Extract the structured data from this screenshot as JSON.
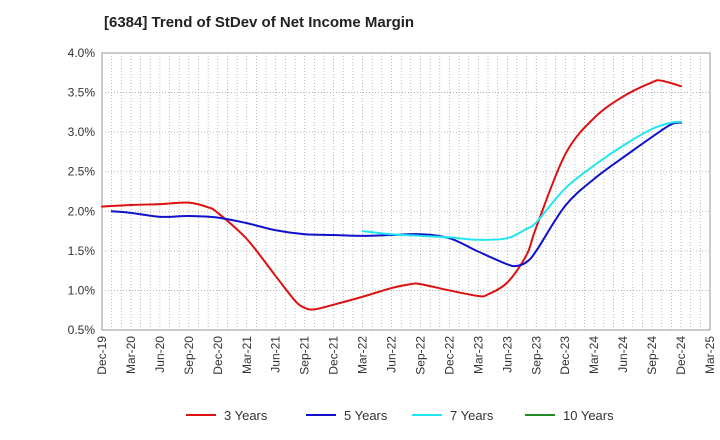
{
  "chart_data": {
    "type": "line",
    "title": "[6384]  Trend of StDev of Net Income Margin",
    "xlabel": "",
    "ylabel": "",
    "x_ticks": [
      "Dec-19",
      "Mar-20",
      "Jun-20",
      "Sep-20",
      "Dec-20",
      "Mar-21",
      "Jun-21",
      "Sep-21",
      "Dec-21",
      "Mar-22",
      "Jun-22",
      "Sep-22",
      "Dec-22",
      "Mar-23",
      "Jun-23",
      "Sep-23",
      "Dec-23",
      "Mar-24",
      "Jun-24",
      "Sep-24",
      "Dec-24",
      "Mar-25"
    ],
    "y_ticks": [
      "0.5%",
      "1.0%",
      "1.5%",
      "2.0%",
      "2.5%",
      "3.0%",
      "3.5%",
      "4.0%"
    ],
    "ylim": [
      0.5,
      4.0
    ],
    "y_unit": "%",
    "grid": true,
    "legend_position": "bottom",
    "series": [
      {
        "name": "3 Years",
        "color": "#dd1111",
        "points": [
          [
            "Dec-19",
            2.06
          ],
          [
            "Mar-20",
            2.08
          ],
          [
            "Jun-20",
            2.09
          ],
          [
            "Sep-20",
            2.11
          ],
          [
            "Nov-20",
            2.05
          ],
          [
            "Dec-20",
            1.98
          ],
          [
            "Mar-21",
            1.65
          ],
          [
            "Jun-21",
            1.18
          ],
          [
            "Aug-21",
            0.87
          ],
          [
            "Sep-21",
            0.78
          ],
          [
            "Oct-21",
            0.76
          ],
          [
            "Dec-21",
            0.82
          ],
          [
            "Mar-22",
            0.92
          ],
          [
            "Jun-22",
            1.03
          ],
          [
            "Aug-22",
            1.08
          ],
          [
            "Sep-22",
            1.08
          ],
          [
            "Dec-22",
            1.0
          ],
          [
            "Mar-23",
            0.93
          ],
          [
            "Apr-23",
            0.95
          ],
          [
            "Jun-23",
            1.1
          ],
          [
            "Aug-23",
            1.45
          ],
          [
            "Sep-23",
            1.8
          ],
          [
            "Dec-23",
            2.72
          ],
          [
            "Mar-24",
            3.18
          ],
          [
            "Jun-24",
            3.45
          ],
          [
            "Sep-24",
            3.63
          ],
          [
            "Oct-24",
            3.65
          ],
          [
            "Dec-24",
            3.58
          ]
        ]
      },
      {
        "name": "5 Years",
        "color": "#1111cc",
        "points": [
          [
            "Jan-20",
            2.0
          ],
          [
            "Mar-20",
            1.98
          ],
          [
            "Jun-20",
            1.93
          ],
          [
            "Sep-20",
            1.94
          ],
          [
            "Dec-20",
            1.92
          ],
          [
            "Mar-21",
            1.85
          ],
          [
            "Jun-21",
            1.76
          ],
          [
            "Sep-21",
            1.71
          ],
          [
            "Dec-21",
            1.7
          ],
          [
            "Mar-22",
            1.69
          ],
          [
            "Jun-22",
            1.7
          ],
          [
            "Sep-22",
            1.71
          ],
          [
            "Dec-22",
            1.66
          ],
          [
            "Mar-23",
            1.49
          ],
          [
            "Jun-23",
            1.33
          ],
          [
            "Jul-23",
            1.31
          ],
          [
            "Aug-23",
            1.36
          ],
          [
            "Sep-23",
            1.5
          ],
          [
            "Dec-23",
            2.07
          ],
          [
            "Mar-24",
            2.41
          ],
          [
            "Jun-24",
            2.68
          ],
          [
            "Sep-24",
            2.94
          ],
          [
            "Nov-24",
            3.1
          ],
          [
            "Dec-24",
            3.12
          ]
        ]
      },
      {
        "name": "7 Years",
        "color": "#22e5f0",
        "points": [
          [
            "Mar-22",
            1.75
          ],
          [
            "Jun-22",
            1.71
          ],
          [
            "Sep-22",
            1.69
          ],
          [
            "Dec-22",
            1.67
          ],
          [
            "Mar-23",
            1.64
          ],
          [
            "Jun-23",
            1.66
          ],
          [
            "Aug-23",
            1.78
          ],
          [
            "Sep-23",
            1.86
          ],
          [
            "Dec-23",
            2.29
          ],
          [
            "Mar-24",
            2.58
          ],
          [
            "Jun-24",
            2.83
          ],
          [
            "Sep-24",
            3.04
          ],
          [
            "Nov-24",
            3.12
          ],
          [
            "Dec-24",
            3.13
          ]
        ]
      },
      {
        "name": "10 Years",
        "color": "#228822",
        "points": []
      }
    ]
  }
}
